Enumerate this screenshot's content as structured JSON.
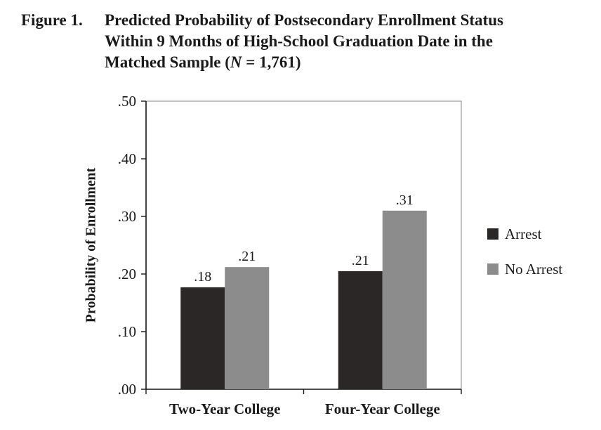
{
  "caption": {
    "label": "Figure 1.",
    "line1": "Predicted Probability of Postsecondary Enrollment Status",
    "line2": "Within 9 Months of High-School Graduation Date in the",
    "line3_pre": "Matched Sample (",
    "line3_n": "N",
    "line3_post": " = 1,761)"
  },
  "chart_data": {
    "type": "bar",
    "ylabel": "Probability of Enrollment",
    "categories": [
      "Two-Year College",
      "Four-Year College"
    ],
    "series": [
      {
        "name": "Arrest",
        "color": "#2b2727",
        "values": [
          0.177,
          0.205
        ],
        "labels": [
          ".18",
          ".21"
        ]
      },
      {
        "name": "No Arrest",
        "color": "#8c8c8c",
        "values": [
          0.212,
          0.31
        ],
        "labels": [
          ".21",
          ".31"
        ]
      }
    ],
    "ylim": [
      0,
      0.5
    ],
    "yticks": [
      0,
      0.1,
      0.2,
      0.3,
      0.4,
      0.5
    ],
    "ytick_labels": [
      ".00",
      ".10",
      ".20",
      ".30",
      ".40",
      ".50"
    ],
    "grid": false,
    "legend": "right"
  }
}
